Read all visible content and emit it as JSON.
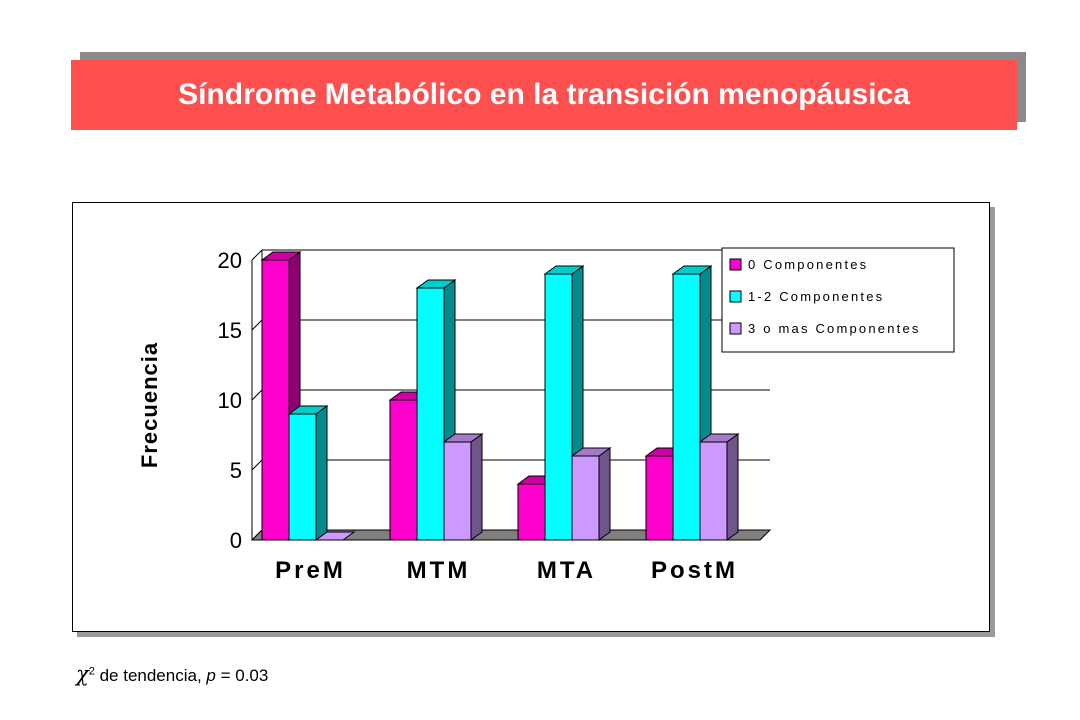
{
  "slide": {
    "title": "Síndrome Metabólico en la transición menopáusica",
    "title_color": "#ff5050"
  },
  "footnote": {
    "symbol": "χ",
    "superscript": "2",
    "text": " de tendencia, ",
    "p_label": "p",
    "p_value": " = 0.03"
  },
  "chart_data": {
    "type": "bar",
    "style": "3d-clustered",
    "ylabel": "Frecuencia",
    "xlabel": "",
    "ylim": [
      0,
      20
    ],
    "yticks": [
      "0",
      "5",
      "10",
      "15",
      "20"
    ],
    "categories": [
      "PreM",
      "MTM",
      "MTA",
      "PostM"
    ],
    "series": [
      {
        "name": "0 Componentes",
        "values": [
          20,
          10,
          4,
          6
        ],
        "color": "#ff00cc"
      },
      {
        "name": "1-2 Componentes",
        "values": [
          9,
          18,
          19,
          19
        ],
        "color": "#00ffff"
      },
      {
        "name": "3 o mas Componentes",
        "values": [
          0,
          7,
          6,
          7
        ],
        "color": "#cc99ff"
      }
    ],
    "grid": true,
    "legend_position": "top-right",
    "floor_color": "#808080"
  }
}
